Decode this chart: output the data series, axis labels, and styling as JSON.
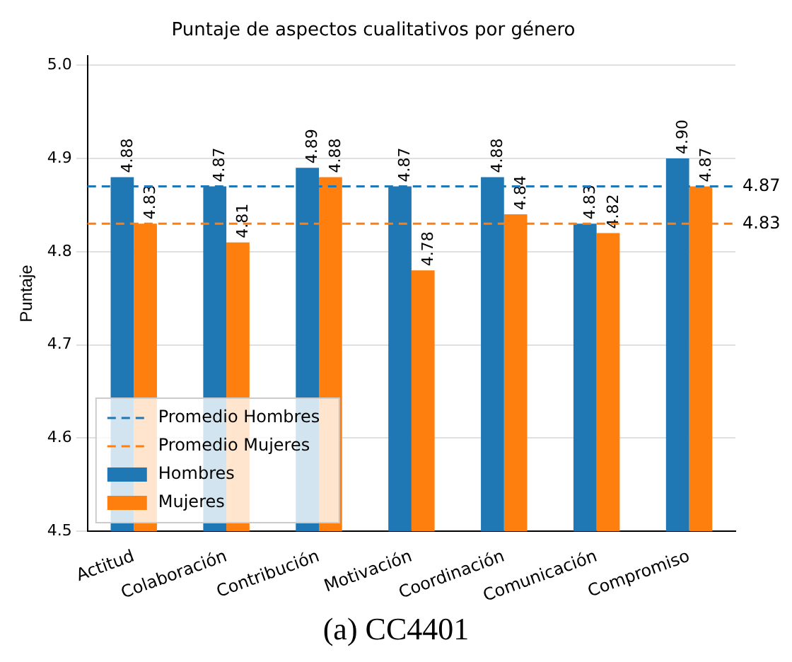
{
  "chart_data": {
    "type": "bar",
    "title": "Puntaje de aspectos cualitativos por género",
    "ylabel": "Puntaje",
    "categories": [
      "Actitud",
      "Colaboración",
      "Contribución",
      "Motivación",
      "Coordinación",
      "Comunicación",
      "Compromiso"
    ],
    "series": [
      {
        "name": "Hombres",
        "color": "#1f77b4",
        "values": [
          4.88,
          4.87,
          4.89,
          4.87,
          4.88,
          4.83,
          4.9
        ],
        "value_labels": [
          "4.88",
          "4.87",
          "4.89",
          "4.87",
          "4.88",
          "4.83",
          "4.90"
        ]
      },
      {
        "name": "Mujeres",
        "color": "#ff7f0e",
        "values": [
          4.83,
          4.81,
          4.88,
          4.78,
          4.84,
          4.82,
          4.87
        ],
        "value_labels": [
          "4.83",
          "4.81",
          "4.88",
          "4.78",
          "4.84",
          "4.82",
          "4.87"
        ]
      }
    ],
    "ref_lines": [
      {
        "axis": "y",
        "value": 4.87,
        "label": "Promedio Hombres",
        "color": "#1f77b4",
        "line_style": "dashed"
      },
      {
        "axis": "y",
        "value": 4.83,
        "label": "Promedio Mujeres",
        "color": "#ff7f0e",
        "line_style": "dashed"
      }
    ],
    "ylim": [
      4.5,
      5.01
    ],
    "yticks": [
      4.5,
      4.6,
      4.7,
      4.8,
      4.9,
      {
        "value": 5.0,
        "label": "5.0"
      }
    ],
    "grid": "y",
    "legend": "bottom left",
    "annotations": [
      "4.87",
      "4.83",
      "(a) CC4401"
    ]
  }
}
